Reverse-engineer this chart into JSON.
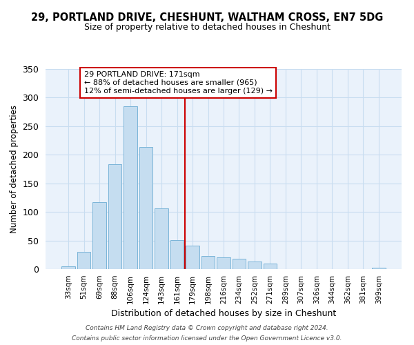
{
  "title": "29, PORTLAND DRIVE, CHESHUNT, WALTHAM CROSS, EN7 5DG",
  "subtitle": "Size of property relative to detached houses in Cheshunt",
  "xlabel": "Distribution of detached houses by size in Cheshunt",
  "ylabel": "Number of detached properties",
  "bar_labels": [
    "33sqm",
    "51sqm",
    "69sqm",
    "88sqm",
    "106sqm",
    "124sqm",
    "143sqm",
    "161sqm",
    "179sqm",
    "198sqm",
    "216sqm",
    "234sqm",
    "252sqm",
    "271sqm",
    "289sqm",
    "307sqm",
    "326sqm",
    "344sqm",
    "362sqm",
    "381sqm",
    "399sqm"
  ],
  "bar_heights": [
    5,
    30,
    117,
    183,
    285,
    214,
    106,
    51,
    41,
    23,
    20,
    18,
    13,
    10,
    0,
    0,
    0,
    0,
    0,
    0,
    2
  ],
  "bar_color": "#c5ddf0",
  "bar_edge_color": "#7ab4d8",
  "vline_x": 7.5,
  "vline_color": "#cc0000",
  "annotation_title": "29 PORTLAND DRIVE: 171sqm",
  "annotation_line1": "← 88% of detached houses are smaller (965)",
  "annotation_line2": "12% of semi-detached houses are larger (129) →",
  "annotation_box_color": "white",
  "annotation_box_edge": "#cc0000",
  "plot_bg_color": "#eaf2fb",
  "grid_color": "#c8ddf0",
  "ylim": [
    0,
    350
  ],
  "yticks": [
    0,
    50,
    100,
    150,
    200,
    250,
    300,
    350
  ],
  "footer1": "Contains HM Land Registry data © Crown copyright and database right 2024.",
  "footer2": "Contains public sector information licensed under the Open Government Licence v3.0."
}
